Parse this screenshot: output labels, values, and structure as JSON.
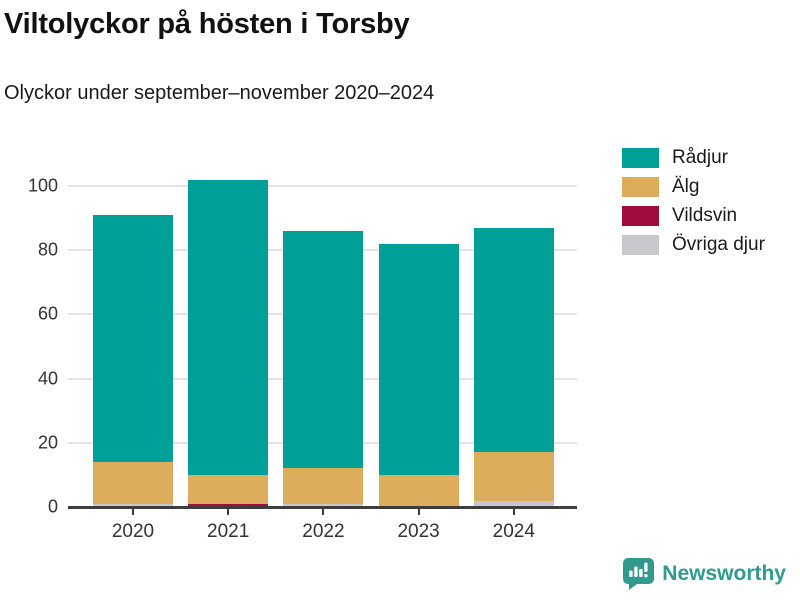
{
  "header": {
    "title": "Viltolyckor på hösten i Torsby",
    "subtitle": "Olyckor under september–november 2020–2024"
  },
  "chart_data": {
    "type": "bar",
    "stacked": true,
    "title": "Viltolyckor på hösten i Torsby",
    "subtitle": "Olyckor under september–november 2020–2024",
    "categories": [
      "2020",
      "2021",
      "2022",
      "2023",
      "2024"
    ],
    "series": [
      {
        "name": "Rådjur",
        "color": "#00a099",
        "values": [
          77,
          92,
          74,
          72,
          70
        ]
      },
      {
        "name": "Älg",
        "color": "#dcad5c",
        "values": [
          13,
          9,
          11,
          10,
          15
        ]
      },
      {
        "name": "Vildsvin",
        "color": "#a00d3c",
        "values": [
          0,
          1,
          0,
          0,
          0
        ]
      },
      {
        "name": "Övriga djur",
        "color": "#c7c8cd",
        "values": [
          1,
          0,
          1,
          0,
          2
        ]
      }
    ],
    "stack_order_bottom_to_top": [
      "Övriga djur",
      "Vildsvin",
      "Älg",
      "Rådjur"
    ],
    "totals": [
      91,
      102,
      86,
      82,
      87
    ],
    "xlabel": "",
    "ylabel": "",
    "y_ticks": [
      0,
      20,
      40,
      60,
      80,
      100
    ],
    "ylim": [
      0,
      105
    ],
    "grid": "horizontal",
    "legend_position": "top-right"
  },
  "footer": {
    "brand": "Newsworthy",
    "brand_color": "#2f9a8d"
  }
}
